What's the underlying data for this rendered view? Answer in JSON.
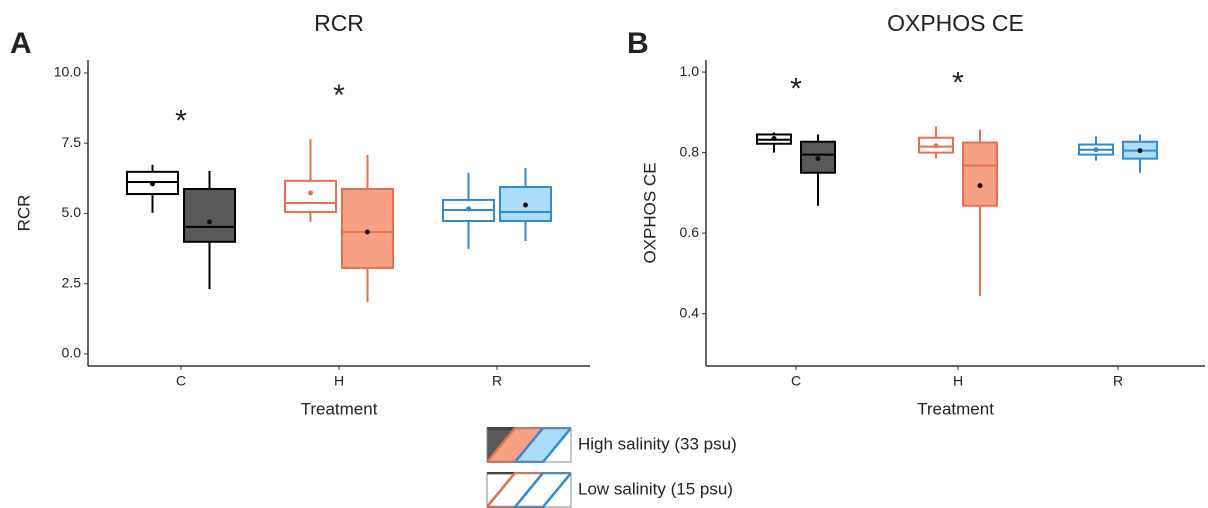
{
  "chart_data": [
    {
      "type": "box",
      "panel_label": "A",
      "title": "RCR",
      "x_label": "Treatment",
      "y_label": "RCR",
      "categories": [
        "C",
        "H",
        "R"
      ],
      "category_colors": [
        {
          "stroke": "#000000",
          "fill": "#595959"
        },
        {
          "stroke": "#e8704f",
          "fill": "#f6a184"
        },
        {
          "stroke": "#2f8ad4",
          "fill": "#abdcf9"
        }
      ],
      "series": [
        {
          "name": "Low salinity (15 psu)",
          "filled": false,
          "values": [
            {
              "min": 5.02,
              "q1": 5.69,
              "median": 6.12,
              "q3": 6.48,
              "max": 6.73,
              "mean": 6.05
            },
            {
              "min": 4.7,
              "q1": 5.05,
              "median": 5.37,
              "q3": 6.16,
              "max": 7.65,
              "mean": 5.73
            },
            {
              "min": 3.74,
              "q1": 4.73,
              "median": 5.12,
              "q3": 5.48,
              "max": 6.44,
              "mean": 5.16
            }
          ]
        },
        {
          "name": "High salinity (33 psu)",
          "filled": true,
          "values": [
            {
              "min": 2.31,
              "q1": 3.99,
              "median": 4.52,
              "q3": 5.87,
              "max": 6.51,
              "mean": 4.7
            },
            {
              "min": 1.85,
              "q1": 3.06,
              "median": 4.34,
              "q3": 5.87,
              "max": 7.08,
              "mean": 4.34
            },
            {
              "min": 4.02,
              "q1": 4.73,
              "median": 5.05,
              "q3": 5.94,
              "max": 6.62,
              "mean": 5.3
            }
          ]
        }
      ],
      "ylim": [
        -0.43,
        10.46
      ],
      "yticks": [
        {
          "value": 0,
          "label": "0.0"
        },
        2.5,
        {
          "value": 5,
          "label": "5.0"
        },
        7.5,
        {
          "value": 10,
          "label": "10.0"
        }
      ],
      "annotations": [
        {
          "category": 0,
          "text": "*"
        },
        {
          "category": 1,
          "text": "*"
        }
      ]
    },
    {
      "type": "box",
      "panel_label": "B",
      "title": "OXPHOS CE",
      "x_label": "Treatment",
      "y_label": "OXPHOS CE",
      "categories": [
        "C",
        "H",
        "R"
      ],
      "category_colors": [
        {
          "stroke": "#000000",
          "fill": "#595959"
        },
        {
          "stroke": "#e8704f",
          "fill": "#f6a184"
        },
        {
          "stroke": "#2f8ad4",
          "fill": "#abdcf9"
        }
      ],
      "series": [
        {
          "name": "Low salinity (15 psu)",
          "filled": false,
          "values": [
            {
              "min": 0.8,
              "q1": 0.822,
              "median": 0.832,
              "q3": 0.845,
              "max": 0.85,
              "mean": 0.835
            },
            {
              "min": 0.785,
              "q1": 0.8,
              "median": 0.815,
              "q3": 0.837,
              "max": 0.865,
              "mean": 0.817
            },
            {
              "min": 0.78,
              "q1": 0.795,
              "median": 0.807,
              "q3": 0.82,
              "max": 0.84,
              "mean": 0.807
            }
          ]
        },
        {
          "name": "High salinity (33 psu)",
          "filled": true,
          "values": [
            {
              "min": 0.668,
              "q1": 0.75,
              "median": 0.795,
              "q3": 0.827,
              "max": 0.845,
              "mean": 0.785
            },
            {
              "min": 0.444,
              "q1": 0.668,
              "median": 0.768,
              "q3": 0.825,
              "max": 0.857,
              "mean": 0.718
            },
            {
              "min": 0.75,
              "q1": 0.785,
              "median": 0.805,
              "q3": 0.827,
              "max": 0.845,
              "mean": 0.805
            }
          ]
        }
      ],
      "ylim": [
        0.27,
        1.03
      ],
      "yticks": [
        0.4,
        0.6,
        0.8,
        {
          "value": 1,
          "label": "1.0"
        }
      ],
      "annotations": [
        {
          "category": 0,
          "text": "*"
        },
        {
          "category": 1,
          "text": "*"
        }
      ]
    }
  ]
}
